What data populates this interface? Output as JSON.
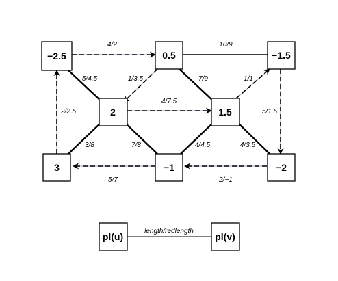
{
  "diagram": {
    "nodes": [
      {
        "id": "n_m25",
        "label": "−2.5"
      },
      {
        "id": "n_05",
        "label": "0.5"
      },
      {
        "id": "n_m15",
        "label": "−1.5"
      },
      {
        "id": "n_2",
        "label": "2"
      },
      {
        "id": "n_15",
        "label": "1.5"
      },
      {
        "id": "n_3",
        "label": "3"
      },
      {
        "id": "n_m1",
        "label": "−1"
      },
      {
        "id": "n_m2",
        "label": "−2"
      }
    ],
    "edges": [
      {
        "from": "n_m25",
        "to": "n_05",
        "label": "4/2",
        "style": "dashed-arrow"
      },
      {
        "from": "n_05",
        "to": "n_m15",
        "label": "10/9",
        "style": "solid"
      },
      {
        "from": "n_m25",
        "to": "n_2",
        "label": "5/4.5",
        "style": "thick"
      },
      {
        "from": "n_05",
        "to": "n_2",
        "label": "1/3.5",
        "style": "dashed-arrow"
      },
      {
        "from": "n_05",
        "to": "n_15",
        "label": "7/9",
        "style": "thick"
      },
      {
        "from": "n_15",
        "to": "n_m15",
        "label": "1/1",
        "style": "dashed-arrow"
      },
      {
        "from": "n_2",
        "to": "n_15",
        "label": "4/7.5",
        "style": "dashed-arrow"
      },
      {
        "from": "n_3",
        "to": "n_m25",
        "label": "2/2.5",
        "style": "dashed-arrow"
      },
      {
        "from": "n_m15",
        "to": "n_m2",
        "label": "5/1.5",
        "style": "dashed-arrow"
      },
      {
        "from": "n_2",
        "to": "n_3",
        "label": "3/8",
        "style": "thick"
      },
      {
        "from": "n_2",
        "to": "n_m1",
        "label": "7/8",
        "style": "thick"
      },
      {
        "from": "n_15",
        "to": "n_m1",
        "label": "4/4.5",
        "style": "thick"
      },
      {
        "from": "n_15",
        "to": "n_m2",
        "label": "4/3.5",
        "style": "thick"
      },
      {
        "from": "n_m1",
        "to": "n_3",
        "label": "5/7",
        "style": "dashed-arrow"
      },
      {
        "from": "n_m2",
        "to": "n_m1",
        "label": "2/−1",
        "style": "dashed-arrow"
      }
    ]
  },
  "legend": {
    "left_label": "pl(u)",
    "right_label": "pl(v)",
    "edge_label": "length/redlength"
  }
}
